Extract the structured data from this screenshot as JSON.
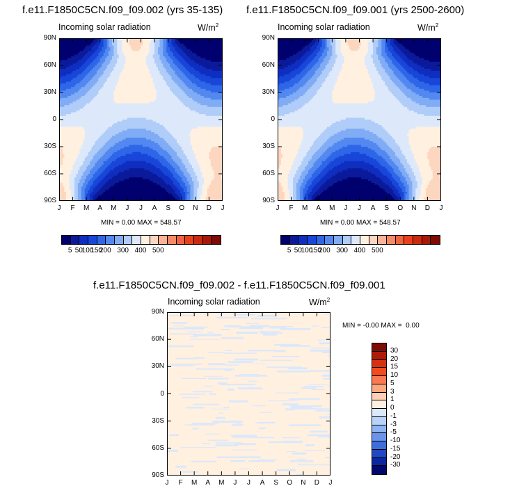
{
  "chart_data": [
    {
      "type": "heatmap",
      "title": "f.e11.F1850C5CN.f09_f09.002 (yrs 35-135)",
      "subtitle": "Incoming solar radiation",
      "units": "W/m",
      "units_exp": "2",
      "x_ticks": [
        "J",
        "F",
        "M",
        "A",
        "M",
        "J",
        "J",
        "A",
        "S",
        "O",
        "N",
        "D",
        "J"
      ],
      "y_ticks": [
        "90N",
        "60N",
        "30N",
        "0",
        "30S",
        "60S",
        "90S"
      ],
      "min_label": "MIN =",
      "min_value": "0.00",
      "max_label": "MAX =",
      "max_value": "548.57",
      "colorbar_labels": [
        "5",
        "50",
        "100",
        "150",
        "200",
        "300",
        "400",
        "500"
      ]
    },
    {
      "type": "heatmap",
      "title": "f.e11.F1850C5CN.f09_f09.001 (yrs 2500-2600)",
      "subtitle": "Incoming solar radiation",
      "units": "W/m",
      "units_exp": "2",
      "x_ticks": [
        "J",
        "F",
        "M",
        "A",
        "M",
        "J",
        "J",
        "A",
        "S",
        "O",
        "N",
        "D",
        "J"
      ],
      "y_ticks": [
        "90N",
        "60N",
        "30N",
        "0",
        "30S",
        "60S",
        "90S"
      ],
      "min_label": "MIN =",
      "min_value": "0.00",
      "max_label": "MAX =",
      "max_value": "548.57",
      "colorbar_labels": [
        "5",
        "50",
        "100",
        "150",
        "200",
        "300",
        "400",
        "500"
      ]
    },
    {
      "type": "heatmap",
      "title": "f.e11.F1850C5CN.f09_f09.002 - f.e11.F1850C5CN.f09_f09.001",
      "subtitle": "Incoming solar radiation",
      "units": "W/m",
      "units_exp": "2",
      "x_ticks": [
        "J",
        "F",
        "M",
        "A",
        "M",
        "J",
        "J",
        "A",
        "S",
        "O",
        "N",
        "D",
        "J"
      ],
      "y_ticks": [
        "90N",
        "60N",
        "30N",
        "0",
        "30S",
        "60S",
        "90S"
      ],
      "min_label": "MIN =",
      "min_value": "-0.00",
      "max_label": "MAX =",
      "max_value": "0.00",
      "colorbar_labels": [
        "30",
        "20",
        "15",
        "10",
        "5",
        "3",
        "1",
        "0",
        "-1",
        "-3",
        "-5",
        "-10",
        "-15",
        "-20",
        "-30"
      ]
    }
  ],
  "colors": {
    "abs_scale": [
      "#00006e",
      "#0a1a9a",
      "#0f2ec0",
      "#1846d8",
      "#2e66e8",
      "#5288f0",
      "#80acf5",
      "#b0ccf8",
      "#dde9fb",
      "#fff0e0",
      "#fdd6bf",
      "#fbb296",
      "#f78a66",
      "#f2623e",
      "#e8401c",
      "#cc2a0e",
      "#a81a08",
      "#7e0c04"
    ],
    "diff_scale": [
      "#7e0c04",
      "#b01a08",
      "#d8300e",
      "#f04c1e",
      "#f77a50",
      "#fba87e",
      "#fdd0b4",
      "#fff0e0",
      "#dce9fb",
      "#b8d2f8",
      "#8fb4f2",
      "#6a94ea",
      "#3e6edc",
      "#1e48c4",
      "#0a26a0",
      "#00086e"
    ],
    "diff_bg": "#fff0e0",
    "diff_stripe": "#dbe8fb"
  }
}
